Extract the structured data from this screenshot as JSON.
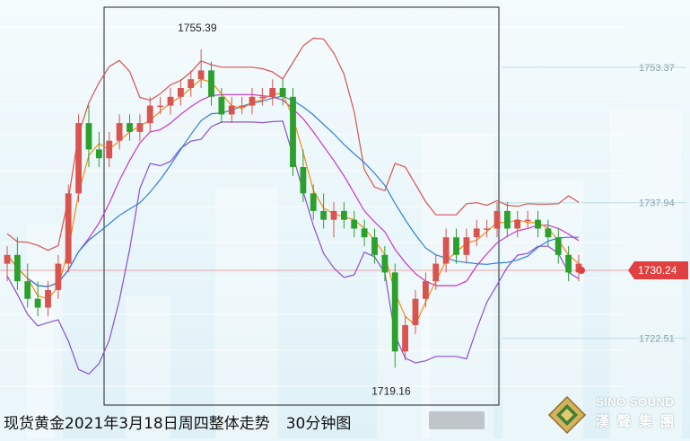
{
  "caption": {
    "title": "现货黄金2021年3月18日周四整体走势",
    "timeframe": "30分钟图"
  },
  "logo": {
    "name_en": "SINO SOUND",
    "name_cn": "漢聲集團"
  },
  "chart_data": {
    "type": "candlestick",
    "ylim": [
      1715,
      1760
    ],
    "y_ticks": [
      1753.37,
      1737.94,
      1722.51
    ],
    "current_price": 1730.24,
    "annotations": {
      "high": 1755.39,
      "low": 1719.16
    },
    "colors": {
      "up": "#d9534f",
      "down": "#2ca02c",
      "upper_band": "#d9534f",
      "mid_band": "#cc33cc",
      "lower_band": "#8a4fd6",
      "ma_fast": "#f28c0f",
      "ma_slow": "#2f7fd8",
      "current": "#e04040"
    },
    "candles": [
      [
        1731,
        1733,
        1729,
        1732
      ],
      [
        1732,
        1734,
        1728,
        1729
      ],
      [
        1729,
        1731,
        1726,
        1727
      ],
      [
        1727,
        1729,
        1725,
        1726
      ],
      [
        1726,
        1729,
        1725,
        1728
      ],
      [
        1728,
        1732,
        1727,
        1731
      ],
      [
        1731,
        1740,
        1730,
        1739
      ],
      [
        1739,
        1748,
        1738,
        1747
      ],
      [
        1747,
        1749,
        1742,
        1744
      ],
      [
        1744,
        1746,
        1742,
        1743
      ],
      [
        1743,
        1746,
        1742,
        1745
      ],
      [
        1745,
        1748,
        1744,
        1747
      ],
      [
        1747,
        1748,
        1745,
        1746
      ],
      [
        1746,
        1748,
        1745,
        1747
      ],
      [
        1747,
        1750,
        1746,
        1749
      ],
      [
        1749,
        1750,
        1748,
        1749
      ],
      [
        1749,
        1751,
        1748,
        1750
      ],
      [
        1750,
        1752,
        1749,
        1751
      ],
      [
        1751,
        1753,
        1750,
        1752
      ],
      [
        1752,
        1755.39,
        1751,
        1753
      ],
      [
        1753,
        1754,
        1749,
        1750
      ],
      [
        1750,
        1751,
        1747,
        1748
      ],
      [
        1748,
        1750,
        1747,
        1749
      ],
      [
        1749,
        1750,
        1748,
        1749
      ],
      [
        1749,
        1751,
        1748,
        1750
      ],
      [
        1750,
        1751,
        1749,
        1750
      ],
      [
        1750,
        1752,
        1749,
        1751
      ],
      [
        1751,
        1752,
        1749,
        1750
      ],
      [
        1750,
        1751,
        1741,
        1742
      ],
      [
        1742,
        1744,
        1738,
        1739
      ],
      [
        1739,
        1740,
        1736,
        1737
      ],
      [
        1737,
        1739,
        1735,
        1736
      ],
      [
        1736,
        1738,
        1734,
        1737
      ],
      [
        1737,
        1738,
        1735,
        1736
      ],
      [
        1736,
        1737,
        1734,
        1735
      ],
      [
        1735,
        1736,
        1733,
        1734
      ],
      [
        1734,
        1735,
        1731,
        1732
      ],
      [
        1732,
        1733,
        1729,
        1730
      ],
      [
        1730,
        1731,
        1719.16,
        1721
      ],
      [
        1721,
        1725,
        1720,
        1724
      ],
      [
        1724,
        1728,
        1723,
        1727
      ],
      [
        1727,
        1730,
        1726,
        1729
      ],
      [
        1729,
        1732,
        1728,
        1731
      ],
      [
        1731,
        1735,
        1730,
        1734
      ],
      [
        1734,
        1735,
        1731,
        1732
      ],
      [
        1732,
        1735,
        1731,
        1734
      ],
      [
        1734,
        1736,
        1733,
        1735
      ],
      [
        1735,
        1736,
        1734,
        1735
      ],
      [
        1735,
        1738,
        1734,
        1737
      ],
      [
        1737,
        1738,
        1734,
        1735
      ],
      [
        1735,
        1737,
        1734,
        1736
      ],
      [
        1736,
        1737,
        1735,
        1736
      ],
      [
        1736,
        1737,
        1734,
        1735
      ],
      [
        1735,
        1736,
        1733,
        1734
      ],
      [
        1734,
        1735,
        1731,
        1732
      ],
      [
        1732,
        1733,
        1729,
        1730
      ],
      [
        1730,
        1732,
        1729,
        1731
      ]
    ]
  }
}
